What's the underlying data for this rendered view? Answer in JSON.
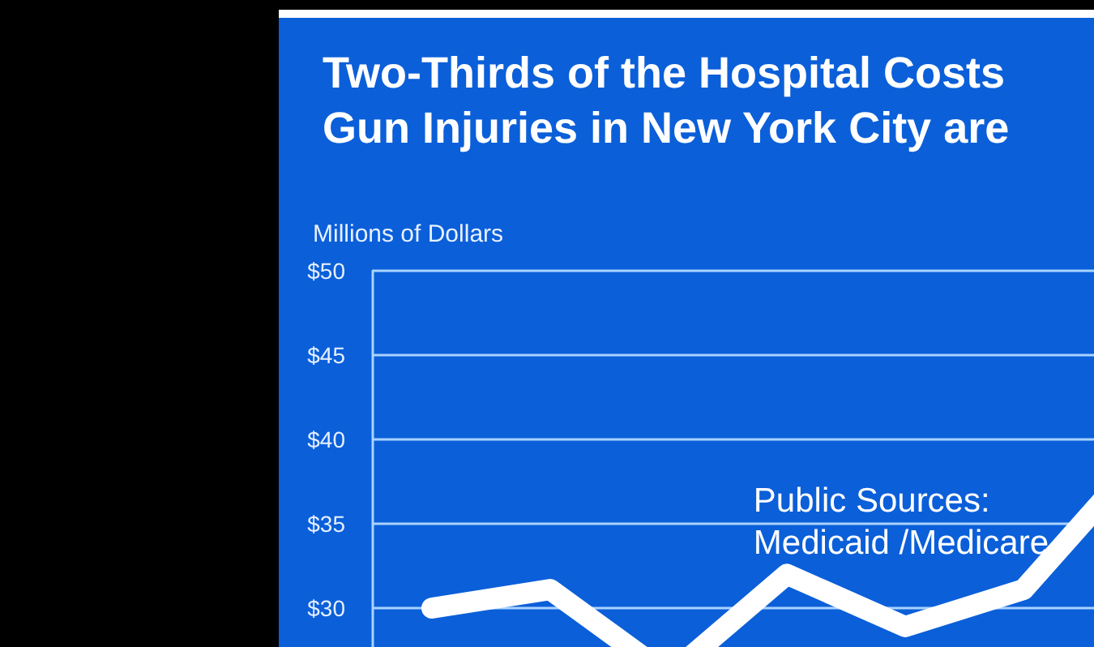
{
  "chart_data": {
    "type": "line",
    "title": "Two-Thirds of the Hospital Costs\nGun Injuries in New York City are",
    "ylabel": "Millions of Dollars",
    "categories": [
      null,
      null,
      null,
      null,
      null,
      null,
      null
    ],
    "series": [
      {
        "name": "Public Sources:\nMedicaid /Medicare",
        "color": "#ffffff",
        "values": [
          30,
          31.1,
          26,
          32,
          28.9,
          31.1,
          39
        ]
      }
    ],
    "ylim": [
      25,
      50
    ],
    "yticks": [
      {
        "value": 30,
        "label": "$30"
      },
      {
        "value": 35,
        "label": "$35"
      },
      {
        "value": 40,
        "label": "$40"
      },
      {
        "value": 45,
        "label": "$45"
      },
      {
        "value": 50,
        "label": "$50"
      }
    ],
    "grid": "y",
    "tick_labels": "y",
    "line_style": "solid"
  }
}
